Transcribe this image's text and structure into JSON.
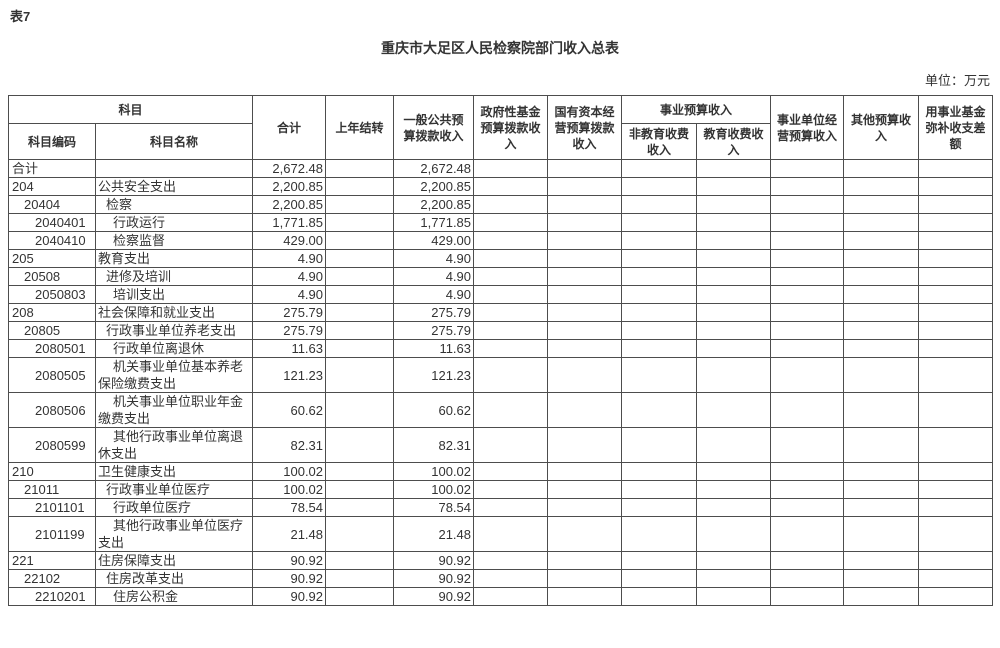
{
  "page": {
    "table_label": "表7",
    "title": "重庆市大足区人民检察院部门收入总表",
    "unit_note": "单位：万元"
  },
  "colors": {
    "background": "#ffffff",
    "text": "#333333",
    "border": "#4d4d4d"
  },
  "table": {
    "header": {
      "subject_group": "科目",
      "subject_code": "科目编码",
      "subject_name": "科目名称",
      "total": "合计",
      "carryover": "上年结转",
      "general_public_budget": "一般公共预\n算拨款收入",
      "gov_fund_budget": "政府性基金\n预算拨款收\n入",
      "state_capital_budget": "国有资本经\n营预算拨款\n收入",
      "business_budget_group": "事业预算收入",
      "non_education_fee": "非教育收费\n收入",
      "education_fee": "教育收费收\n入",
      "business_unit_operating": "事业单位经\n营预算收入",
      "other_budget": "其他预算收\n入",
      "fund_balance": "用事业基金\n弥补收支差\n额"
    },
    "rows": [
      {
        "code": "合计",
        "name": "",
        "level": 1,
        "values": [
          "2,672.48",
          "",
          "2,672.48",
          "",
          "",
          "",
          "",
          "",
          "",
          ""
        ]
      },
      {
        "code": "204",
        "name": "公共安全支出",
        "level": 1,
        "values": [
          "2,200.85",
          "",
          "2,200.85",
          "",
          "",
          "",
          "",
          "",
          "",
          ""
        ]
      },
      {
        "code": "20404",
        "name": "检察",
        "level": 2,
        "values": [
          "2,200.85",
          "",
          "2,200.85",
          "",
          "",
          "",
          "",
          "",
          "",
          ""
        ]
      },
      {
        "code": "2040401",
        "name": "行政运行",
        "level": 3,
        "values": [
          "1,771.85",
          "",
          "1,771.85",
          "",
          "",
          "",
          "",
          "",
          "",
          ""
        ]
      },
      {
        "code": "2040410",
        "name": "检察监督",
        "level": 3,
        "values": [
          "429.00",
          "",
          "429.00",
          "",
          "",
          "",
          "",
          "",
          "",
          ""
        ]
      },
      {
        "code": "205",
        "name": "教育支出",
        "level": 1,
        "values": [
          "4.90",
          "",
          "4.90",
          "",
          "",
          "",
          "",
          "",
          "",
          ""
        ]
      },
      {
        "code": "20508",
        "name": "进修及培训",
        "level": 2,
        "values": [
          "4.90",
          "",
          "4.90",
          "",
          "",
          "",
          "",
          "",
          "",
          ""
        ]
      },
      {
        "code": "2050803",
        "name": "培训支出",
        "level": 3,
        "values": [
          "4.90",
          "",
          "4.90",
          "",
          "",
          "",
          "",
          "",
          "",
          ""
        ]
      },
      {
        "code": "208",
        "name": "社会保障和就业支出",
        "level": 1,
        "values": [
          "275.79",
          "",
          "275.79",
          "",
          "",
          "",
          "",
          "",
          "",
          ""
        ]
      },
      {
        "code": "20805",
        "name": "行政事业单位养老支出",
        "level": 2,
        "values": [
          "275.79",
          "",
          "275.79",
          "",
          "",
          "",
          "",
          "",
          "",
          ""
        ]
      },
      {
        "code": "2080501",
        "name": "行政单位离退休",
        "level": 3,
        "values": [
          "11.63",
          "",
          "11.63",
          "",
          "",
          "",
          "",
          "",
          "",
          ""
        ]
      },
      {
        "code": "2080505",
        "name": "机关事业单位基本养老\n保险缴费支出",
        "level": 3,
        "values": [
          "121.23",
          "",
          "121.23",
          "",
          "",
          "",
          "",
          "",
          "",
          ""
        ]
      },
      {
        "code": "2080506",
        "name": "机关事业单位职业年金\n缴费支出",
        "level": 3,
        "values": [
          "60.62",
          "",
          "60.62",
          "",
          "",
          "",
          "",
          "",
          "",
          ""
        ]
      },
      {
        "code": "2080599",
        "name": "其他行政事业单位离退\n休支出",
        "level": 3,
        "values": [
          "82.31",
          "",
          "82.31",
          "",
          "",
          "",
          "",
          "",
          "",
          ""
        ]
      },
      {
        "code": "210",
        "name": "卫生健康支出",
        "level": 1,
        "values": [
          "100.02",
          "",
          "100.02",
          "",
          "",
          "",
          "",
          "",
          "",
          ""
        ]
      },
      {
        "code": "21011",
        "name": "行政事业单位医疗",
        "level": 2,
        "values": [
          "100.02",
          "",
          "100.02",
          "",
          "",
          "",
          "",
          "",
          "",
          ""
        ]
      },
      {
        "code": "2101101",
        "name": "行政单位医疗",
        "level": 3,
        "values": [
          "78.54",
          "",
          "78.54",
          "",
          "",
          "",
          "",
          "",
          "",
          ""
        ]
      },
      {
        "code": "2101199",
        "name": "其他行政事业单位医疗\n支出",
        "level": 3,
        "values": [
          "21.48",
          "",
          "21.48",
          "",
          "",
          "",
          "",
          "",
          "",
          ""
        ]
      },
      {
        "code": "221",
        "name": "住房保障支出",
        "level": 1,
        "values": [
          "90.92",
          "",
          "90.92",
          "",
          "",
          "",
          "",
          "",
          "",
          ""
        ]
      },
      {
        "code": "22102",
        "name": "住房改革支出",
        "level": 2,
        "values": [
          "90.92",
          "",
          "90.92",
          "",
          "",
          "",
          "",
          "",
          "",
          ""
        ]
      },
      {
        "code": "2210201",
        "name": "住房公积金",
        "level": 3,
        "values": [
          "90.92",
          "",
          "90.92",
          "",
          "",
          "",
          "",
          "",
          "",
          ""
        ]
      }
    ]
  }
}
